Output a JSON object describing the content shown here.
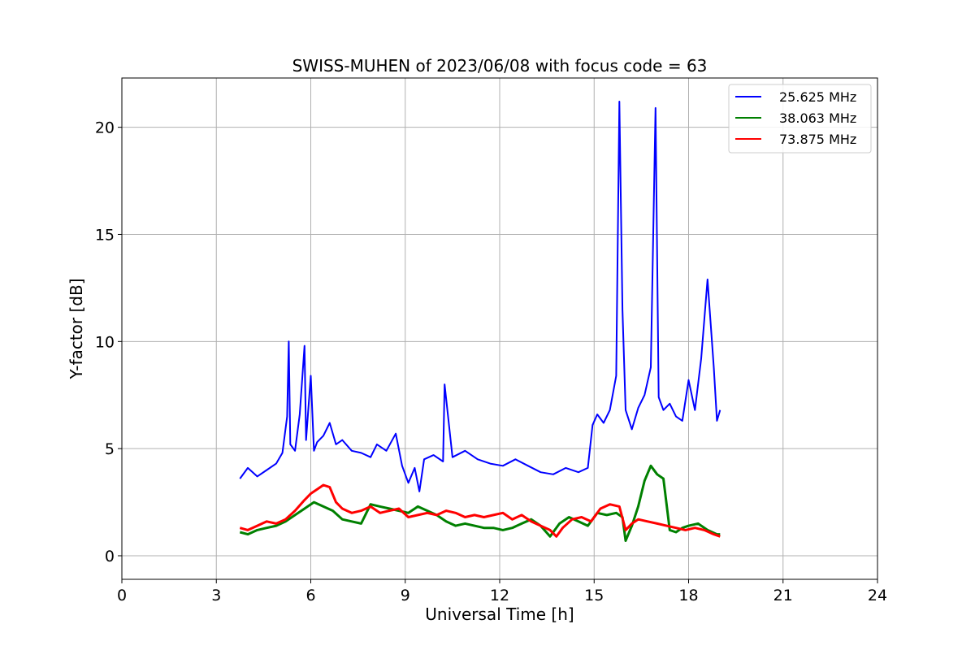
{
  "chart_data": {
    "type": "line",
    "title": "SWISS-MUHEN of 2023/06/08 with focus code = 63",
    "xlabel": "Universal Time [h]",
    "ylabel": "Y-factor [dB]",
    "xlim": [
      0,
      24
    ],
    "ylim": [
      -1.1,
      22.3
    ],
    "xticks": [
      0,
      3,
      6,
      9,
      12,
      15,
      18,
      21,
      24
    ],
    "yticks": [
      0,
      5,
      10,
      15,
      20
    ],
    "grid": true,
    "legend_position": "top-right",
    "series": [
      {
        "name": "25.625 MHz",
        "color": "#0000ff",
        "x": [
          3.75,
          4.0,
          4.3,
          4.6,
          4.9,
          5.1,
          5.25,
          5.3,
          5.35,
          5.5,
          5.65,
          5.8,
          5.85,
          6.0,
          6.1,
          6.2,
          6.4,
          6.6,
          6.8,
          7.0,
          7.3,
          7.6,
          7.9,
          8.1,
          8.4,
          8.7,
          8.9,
          9.1,
          9.3,
          9.45,
          9.6,
          9.9,
          10.2,
          10.25,
          10.5,
          10.9,
          11.3,
          11.7,
          12.1,
          12.5,
          12.9,
          13.3,
          13.7,
          14.1,
          14.5,
          14.8,
          14.95,
          15.1,
          15.3,
          15.5,
          15.7,
          15.8,
          15.9,
          16.0,
          16.2,
          16.4,
          16.6,
          16.8,
          16.95,
          17.05,
          17.2,
          17.4,
          17.6,
          17.8,
          18.0,
          18.2,
          18.4,
          18.6,
          18.8,
          18.9,
          19.0
        ],
        "y": [
          3.6,
          4.1,
          3.7,
          4.0,
          4.3,
          4.8,
          6.5,
          10.0,
          5.2,
          4.9,
          6.6,
          9.8,
          5.4,
          8.4,
          4.9,
          5.3,
          5.6,
          6.2,
          5.2,
          5.4,
          4.9,
          4.8,
          4.6,
          5.2,
          4.9,
          5.7,
          4.2,
          3.4,
          4.1,
          3.0,
          4.5,
          4.7,
          4.4,
          8.0,
          4.6,
          4.9,
          4.5,
          4.3,
          4.2,
          4.5,
          4.2,
          3.9,
          3.8,
          4.1,
          3.9,
          4.1,
          6.1,
          6.6,
          6.2,
          6.8,
          8.4,
          21.2,
          11.5,
          6.8,
          5.9,
          6.9,
          7.5,
          8.8,
          20.9,
          7.4,
          6.8,
          7.1,
          6.5,
          6.3,
          8.2,
          6.8,
          9.2,
          12.9,
          8.8,
          6.3,
          6.8
        ]
      },
      {
        "name": "38.063 MHz",
        "color": "#008000",
        "x": [
          3.75,
          4.0,
          4.3,
          4.6,
          4.9,
          5.2,
          5.5,
          5.8,
          6.1,
          6.4,
          6.7,
          7.0,
          7.3,
          7.6,
          7.9,
          8.2,
          8.5,
          8.8,
          9.1,
          9.4,
          9.7,
          10.0,
          10.3,
          10.6,
          10.9,
          11.2,
          11.5,
          11.8,
          12.1,
          12.4,
          12.7,
          13.0,
          13.3,
          13.6,
          13.9,
          14.2,
          14.5,
          14.8,
          15.1,
          15.4,
          15.7,
          15.9,
          16.0,
          16.2,
          16.4,
          16.6,
          16.8,
          17.0,
          17.2,
          17.4,
          17.6,
          17.8,
          18.0,
          18.3,
          18.6,
          18.9,
          19.0
        ],
        "y": [
          1.1,
          1.0,
          1.2,
          1.3,
          1.4,
          1.6,
          1.9,
          2.2,
          2.5,
          2.3,
          2.1,
          1.7,
          1.6,
          1.5,
          2.4,
          2.3,
          2.2,
          2.1,
          2.0,
          2.3,
          2.1,
          1.9,
          1.6,
          1.4,
          1.5,
          1.4,
          1.3,
          1.3,
          1.2,
          1.3,
          1.5,
          1.7,
          1.4,
          0.9,
          1.5,
          1.8,
          1.6,
          1.4,
          2.0,
          1.9,
          2.0,
          1.8,
          0.7,
          1.4,
          2.3,
          3.5,
          4.2,
          3.8,
          3.6,
          1.2,
          1.1,
          1.3,
          1.4,
          1.5,
          1.2,
          1.0,
          1.0
        ]
      },
      {
        "name": "73.875 MHz",
        "color": "#ff0000",
        "x": [
          3.75,
          4.0,
          4.3,
          4.6,
          4.9,
          5.2,
          5.5,
          5.8,
          6.0,
          6.2,
          6.4,
          6.6,
          6.8,
          7.0,
          7.3,
          7.6,
          7.9,
          8.2,
          8.5,
          8.8,
          9.1,
          9.4,
          9.7,
          10.0,
          10.3,
          10.6,
          10.9,
          11.2,
          11.5,
          11.8,
          12.1,
          12.4,
          12.7,
          13.0,
          13.3,
          13.6,
          13.8,
          14.0,
          14.3,
          14.6,
          14.9,
          15.2,
          15.5,
          15.8,
          16.0,
          16.2,
          16.4,
          16.7,
          17.0,
          17.3,
          17.6,
          17.9,
          18.2,
          18.5,
          18.8,
          19.0
        ],
        "y": [
          1.3,
          1.2,
          1.4,
          1.6,
          1.5,
          1.7,
          2.1,
          2.6,
          2.9,
          3.1,
          3.3,
          3.2,
          2.5,
          2.2,
          2.0,
          2.1,
          2.3,
          2.0,
          2.1,
          2.2,
          1.8,
          1.9,
          2.0,
          1.9,
          2.1,
          2.0,
          1.8,
          1.9,
          1.8,
          1.9,
          2.0,
          1.7,
          1.9,
          1.6,
          1.4,
          1.2,
          0.9,
          1.3,
          1.7,
          1.8,
          1.6,
          2.2,
          2.4,
          2.3,
          1.2,
          1.5,
          1.7,
          1.6,
          1.5,
          1.4,
          1.3,
          1.2,
          1.3,
          1.2,
          1.0,
          0.9
        ]
      }
    ]
  }
}
